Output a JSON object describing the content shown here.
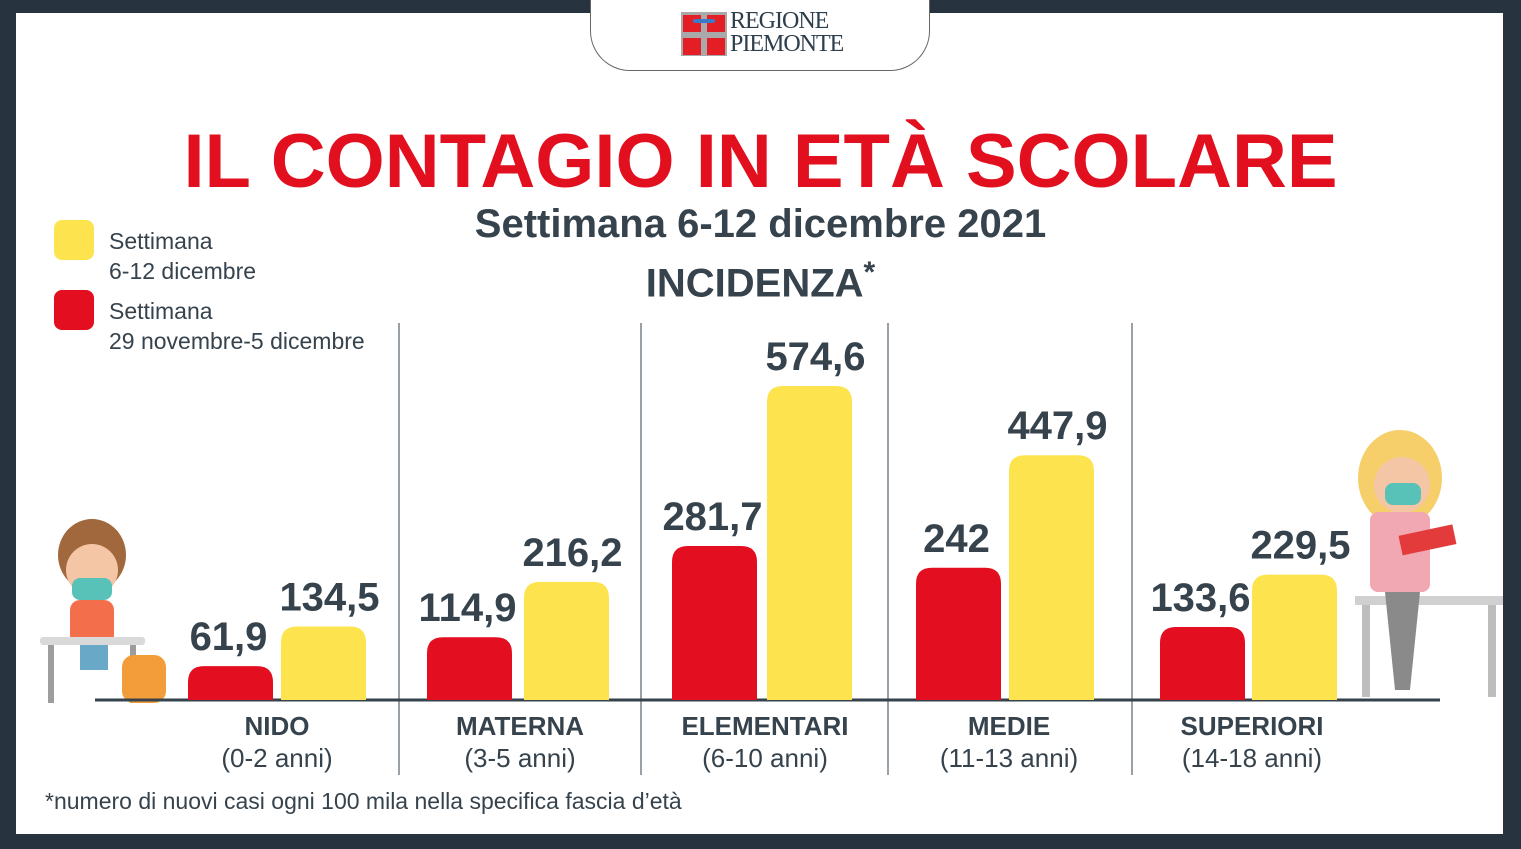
{
  "logo": {
    "line1": "REGIONE",
    "line2": "PIEMONTE"
  },
  "title": "IL CONTAGIO IN ETÀ SCOLARE",
  "subtitle": "Settimana 6-12 dicembre 2021",
  "metric": "INCIDENZA",
  "metric_mark": "*",
  "legend": [
    {
      "line1": "Settimana",
      "line2": "6-12 dicembre",
      "color": "#fde44e"
    },
    {
      "line1": "Settimana",
      "line2": "29 novembre-5 dicembre",
      "color": "#e30f20"
    }
  ],
  "chart_data": {
    "type": "bar",
    "title": "Incidenza",
    "categories": [
      {
        "name": "NIDO",
        "range": "(0-2 anni)"
      },
      {
        "name": "MATERNA",
        "range": "(3-5 anni)"
      },
      {
        "name": "ELEMENTARI",
        "range": "(6-10 anni)"
      },
      {
        "name": "MEDIE",
        "range": "(11-13 anni)"
      },
      {
        "name": "SUPERIORI",
        "range": "(14-18 anni)"
      }
    ],
    "series": [
      {
        "name": "Settimana 29 novembre-5 dicembre",
        "color": "#e30f20",
        "values": [
          61.9,
          114.9,
          281.7,
          242,
          133.6
        ],
        "labels": [
          "61,9",
          "114,9",
          "281,7",
          "242",
          "133,6"
        ]
      },
      {
        "name": "Settimana 6-12 dicembre",
        "color": "#fde44e",
        "values": [
          134.5,
          216.2,
          574.6,
          447.9,
          229.5
        ],
        "labels": [
          "134,5",
          "216,2",
          "574,6",
          "447,9",
          "229,5"
        ]
      }
    ],
    "ylim": [
      0,
      600
    ]
  },
  "footnote": "*numero di nuovi casi ogni 100 mila nella specifica fascia d’età"
}
